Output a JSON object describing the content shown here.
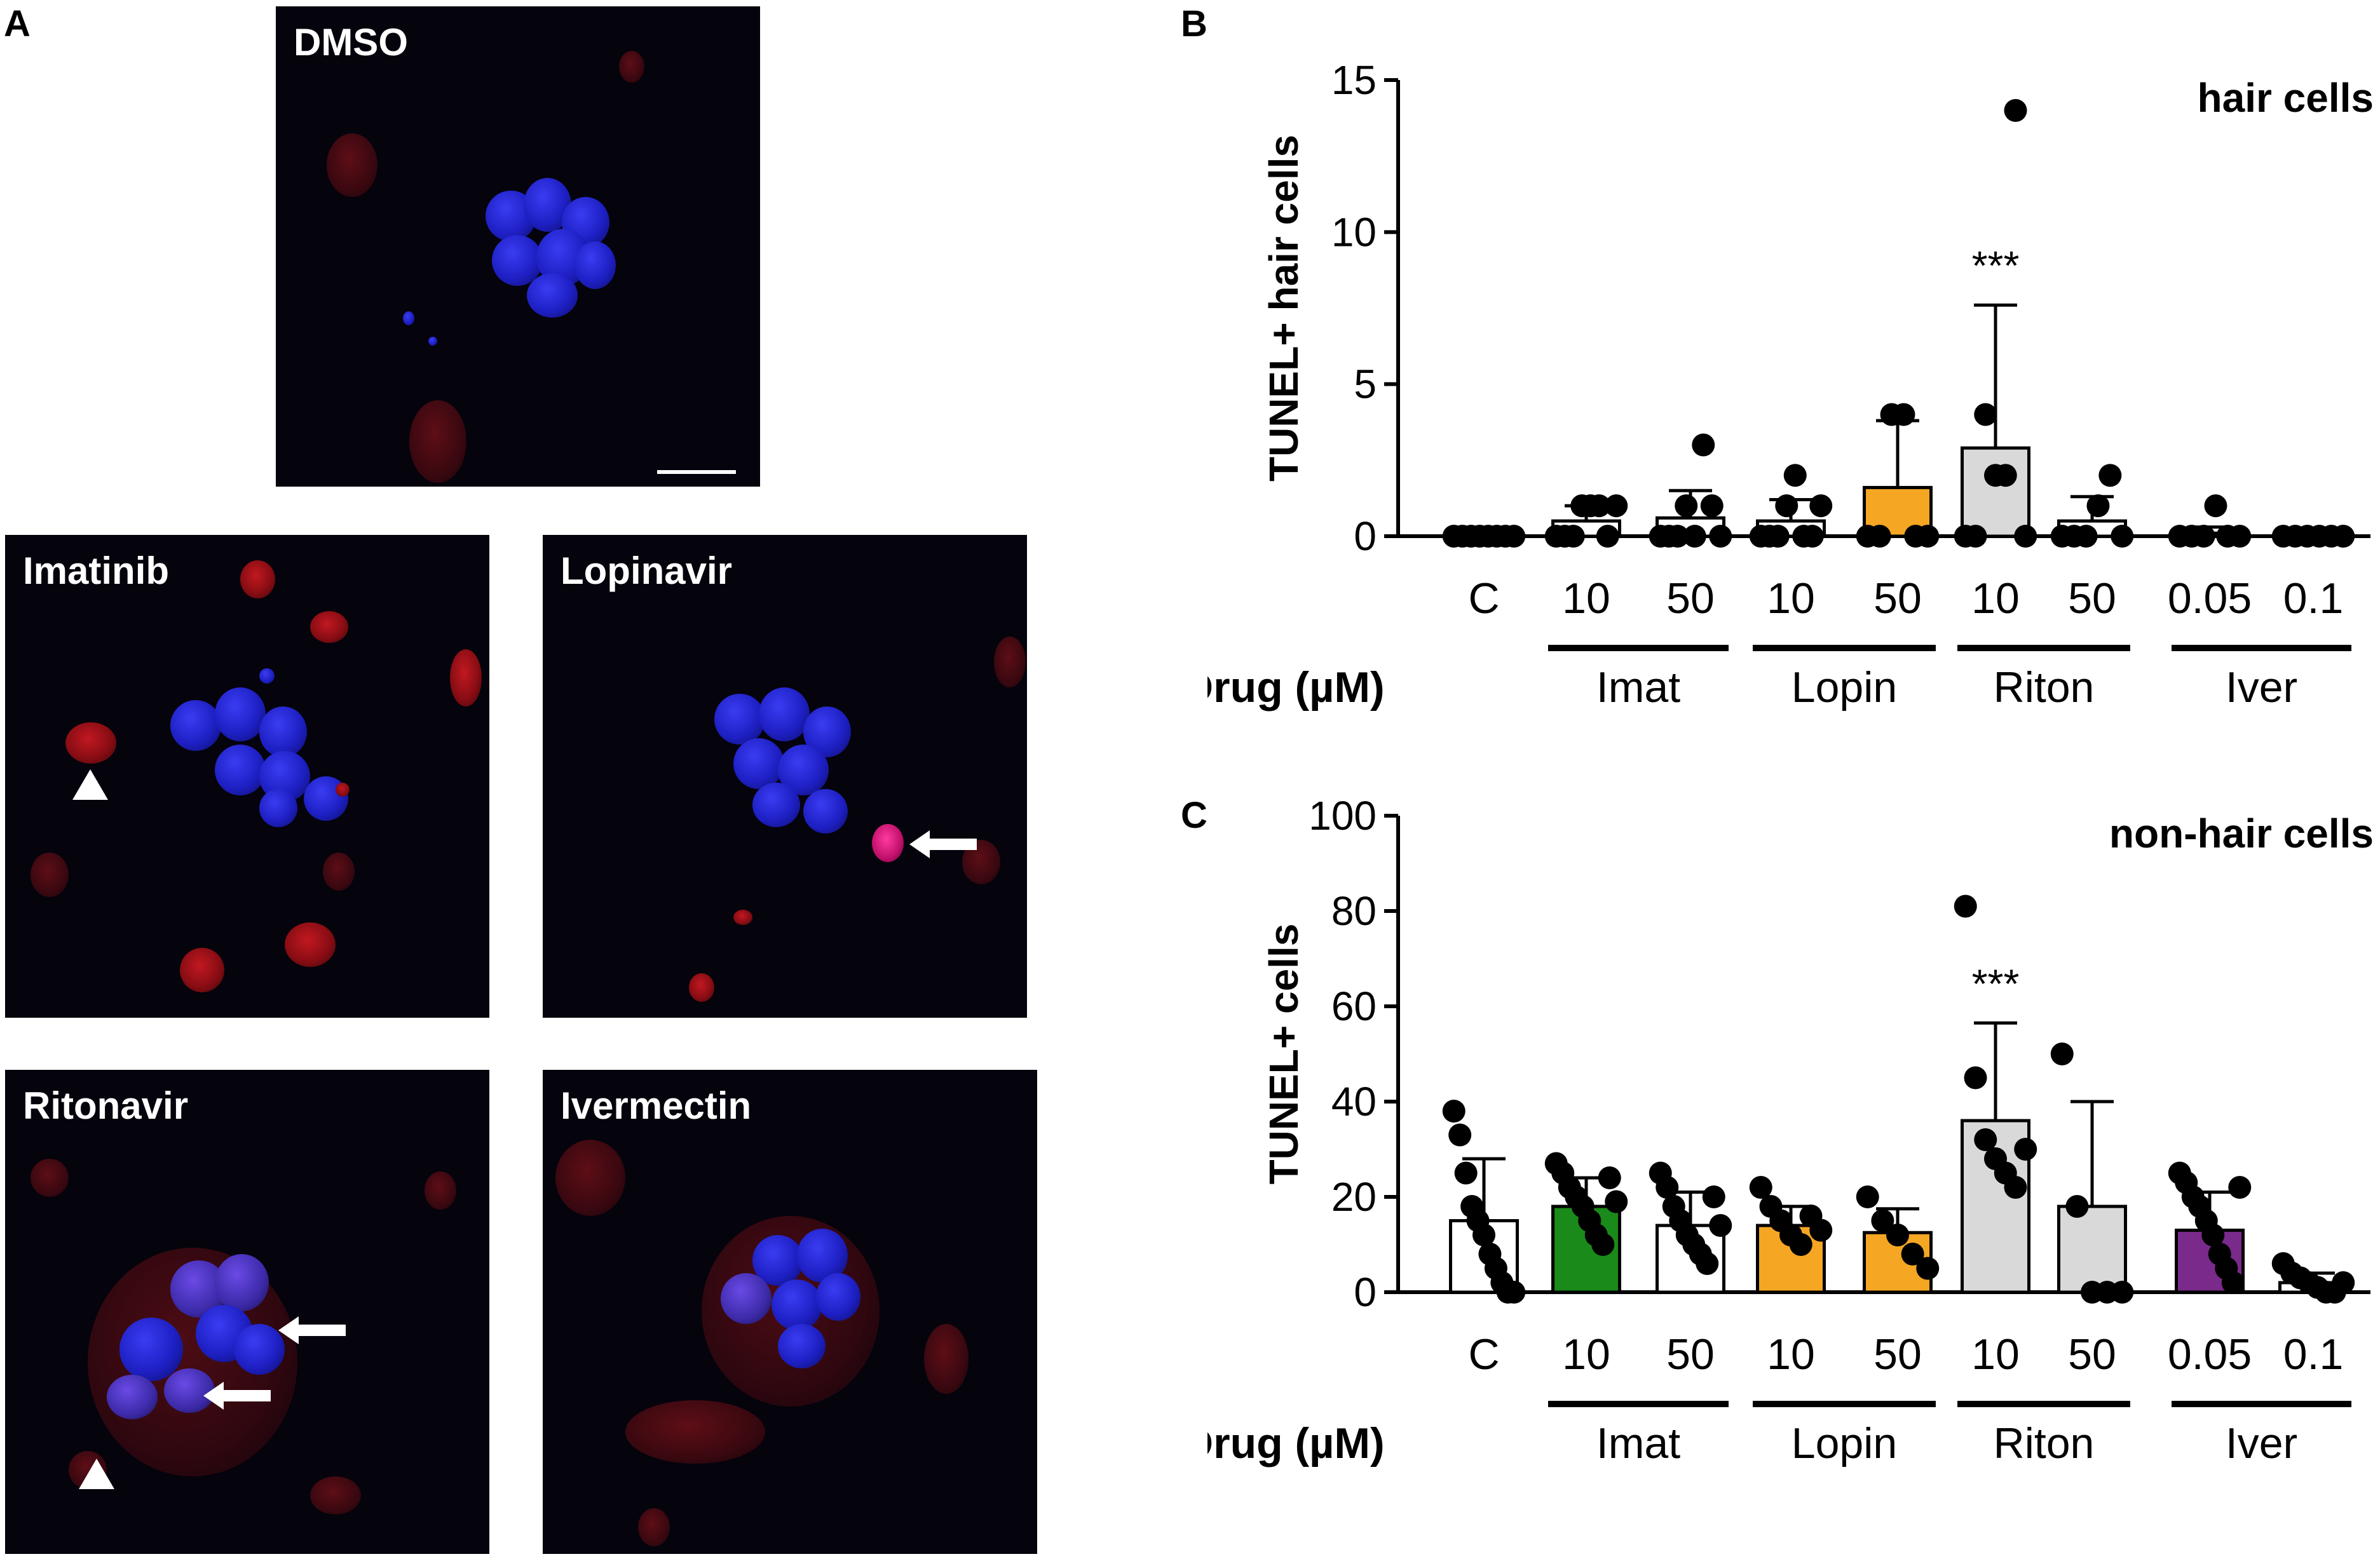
{
  "panel_letters": {
    "a": "A",
    "b": "B",
    "c": "C"
  },
  "micrographs": {
    "dmso": "DMSO",
    "imatinib": "Imatinib",
    "lopinavir": "Lopinavir",
    "ritonavir": "Ritonavir",
    "ivermectin": "Ivermectin"
  },
  "colors": {
    "control": "#ffffff",
    "imatinib": "#1a8a1a",
    "lopinavir": "#f5a623",
    "ritonavir": "#d9d9d9",
    "ivermectin": "#7a2a8a",
    "marker": "#000000",
    "micro_bg": "#05030c",
    "nuclei_blue": "#2a2ce0",
    "tunel_red": "#b01018"
  },
  "chart_data": [
    {
      "type": "bar",
      "panel": "B",
      "title": "hair cells",
      "ylabel": "TUNEL+ hair cells",
      "xlabel": "Drug (µM)",
      "ylim": [
        0,
        15
      ],
      "yticks": [
        0,
        5,
        10,
        15
      ],
      "categories": [
        "C",
        "10",
        "50",
        "10",
        "50",
        "10",
        "50",
        "0.05",
        "0.1"
      ],
      "groups": [
        {
          "label": "Imat",
          "categories": [
            1,
            2
          ]
        },
        {
          "label": "Lopin",
          "categories": [
            3,
            4
          ]
        },
        {
          "label": "Riton",
          "categories": [
            5,
            6
          ]
        },
        {
          "label": "Iver",
          "categories": [
            7,
            8
          ]
        }
      ],
      "values": [
        0,
        0.5,
        0.6,
        0.5,
        1.6,
        2.9,
        0.5,
        0.1,
        0
      ],
      "sd": [
        0,
        0.5,
        0.9,
        0.7,
        2.2,
        4.7,
        0.8,
        0.2,
        0
      ],
      "fills": [
        "white",
        "white",
        "white",
        "white",
        "lopinavir",
        "ritonavir",
        "white",
        "white",
        "white"
      ],
      "points": [
        [
          0,
          0,
          0,
          0,
          0,
          0,
          0,
          0
        ],
        [
          0,
          0,
          0,
          1,
          1,
          1,
          0,
          1
        ],
        [
          0,
          0,
          0,
          1,
          0,
          3,
          1,
          0
        ],
        [
          0,
          0,
          0,
          1,
          2,
          0,
          0,
          1
        ],
        [
          0,
          0,
          4,
          4,
          0,
          0
        ],
        [
          0,
          0,
          4,
          2,
          2,
          14,
          0
        ],
        [
          0,
          0,
          0,
          1,
          2,
          0
        ],
        [
          0,
          0,
          0,
          1,
          0,
          0
        ],
        [
          0,
          0,
          0,
          0,
          0,
          0
        ]
      ],
      "annotations": [
        {
          "category": 5,
          "text": "***"
        }
      ]
    },
    {
      "type": "bar",
      "panel": "C",
      "title": "non-hair cells",
      "ylabel": "TUNEL+  cells",
      "xlabel": "Drug (µM)",
      "ylim": [
        0,
        100
      ],
      "yticks": [
        0,
        20,
        40,
        60,
        80,
        100
      ],
      "categories": [
        "C",
        "10",
        "50",
        "10",
        "50",
        "10",
        "50",
        "0.05",
        "0.1"
      ],
      "groups": [
        {
          "label": "Imat",
          "categories": [
            1,
            2
          ]
        },
        {
          "label": "Lopin",
          "categories": [
            3,
            4
          ]
        },
        {
          "label": "Riton",
          "categories": [
            5,
            6
          ]
        },
        {
          "label": "Iver",
          "categories": [
            7,
            8
          ]
        }
      ],
      "values": [
        15,
        18,
        14,
        14,
        12.5,
        36,
        18,
        13,
        2
      ],
      "sd": [
        13,
        6,
        7,
        4,
        5,
        20.5,
        22,
        8,
        2
      ],
      "fills": [
        "white",
        "imatinib",
        "white",
        "lopinavir",
        "lopinavir",
        "ritonavir",
        "ritonavir",
        "ivermectin",
        "white"
      ],
      "points": [
        [
          38,
          33,
          25,
          18,
          15,
          12,
          8,
          5,
          2,
          0,
          0
        ],
        [
          27,
          25,
          22,
          20,
          18,
          15,
          12,
          10,
          24,
          19
        ],
        [
          25,
          22,
          18,
          15,
          12,
          10,
          8,
          6,
          20,
          14
        ],
        [
          22,
          18,
          15,
          12,
          10,
          16,
          13
        ],
        [
          20,
          15,
          12,
          8,
          5
        ],
        [
          81,
          45,
          32,
          28,
          25,
          22,
          30
        ],
        [
          50,
          18,
          0,
          0,
          0
        ],
        [
          25,
          23,
          20,
          18,
          15,
          12,
          8,
          5,
          2,
          22
        ],
        [
          6,
          4,
          3,
          2,
          1,
          0,
          0,
          2
        ]
      ],
      "annotations": [
        {
          "category": 5,
          "text": "***"
        }
      ]
    }
  ]
}
